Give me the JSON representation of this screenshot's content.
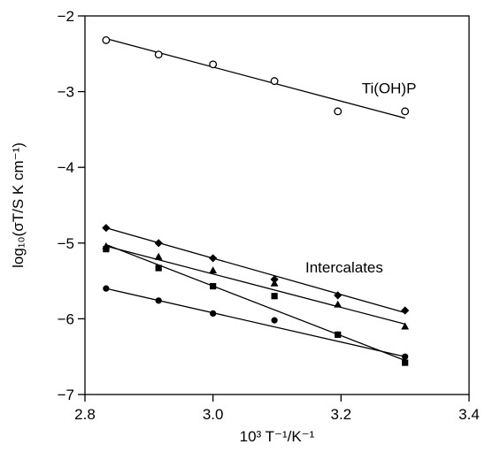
{
  "chart_data": {
    "type": "scatter",
    "title": "",
    "xlabel": "10³ T⁻¹/K⁻¹",
    "ylabel": "log₁₀(σT/S K cm⁻¹)",
    "xlim": [
      2.8,
      3.4
    ],
    "ylim": [
      -7,
      -2
    ],
    "x_ticks": [
      2.8,
      3.0,
      3.2,
      3.4
    ],
    "x_tick_labels": [
      "2.8",
      "3.0",
      "3.2",
      "3.4"
    ],
    "y_ticks": [
      -7,
      -6,
      -5,
      -4,
      -3,
      -2
    ],
    "y_tick_labels": [
      "−7",
      "−6",
      "−5",
      "−4",
      "−3",
      "−2"
    ],
    "grid": false,
    "annotations": [
      {
        "text": "Ti(OH)P",
        "x": 3.275,
        "y": -2.95
      },
      {
        "text": "Intercalates",
        "x": 3.205,
        "y": -5.32
      }
    ],
    "series": [
      {
        "marker": "open-circle",
        "x": [
          2.833,
          2.915,
          3.0,
          3.096,
          3.195,
          3.3
        ],
        "values": [
          -2.32,
          -2.51,
          -2.64,
          -2.86,
          -3.26,
          -3.26
        ],
        "fit": [
          [
            2.833,
            -2.3
          ],
          [
            3.3,
            -3.35
          ]
        ]
      },
      {
        "marker": "filled-diamond",
        "x": [
          2.833,
          2.915,
          3.0,
          3.096,
          3.195,
          3.3
        ],
        "values": [
          -4.8,
          -5.0,
          -5.2,
          -5.48,
          -5.69,
          -5.89
        ],
        "fit": [
          [
            2.833,
            -4.8
          ],
          [
            3.3,
            -5.92
          ]
        ]
      },
      {
        "marker": "filled-triangle",
        "x": [
          2.833,
          2.915,
          3.0,
          3.096,
          3.195,
          3.3
        ],
        "values": [
          -5.04,
          -5.18,
          -5.36,
          -5.53,
          -5.81,
          -6.1
        ],
        "fit": [
          [
            2.833,
            -5.04
          ],
          [
            3.3,
            -6.07
          ]
        ]
      },
      {
        "marker": "filled-square",
        "x": [
          2.833,
          2.915,
          3.0,
          3.096,
          3.195,
          3.3
        ],
        "values": [
          -5.08,
          -5.33,
          -5.57,
          -5.7,
          -6.21,
          -6.58
        ],
        "fit": [
          [
            2.833,
            -5.02
          ],
          [
            3.3,
            -6.55
          ]
        ]
      },
      {
        "marker": "filled-circle",
        "x": [
          2.833,
          2.915,
          3.0,
          3.096,
          3.195,
          3.3
        ],
        "values": [
          -5.6,
          -5.76,
          -5.93,
          -6.02,
          -6.21,
          -6.5
        ],
        "fit": [
          [
            2.833,
            -5.6
          ],
          [
            3.3,
            -6.5
          ]
        ]
      }
    ]
  }
}
